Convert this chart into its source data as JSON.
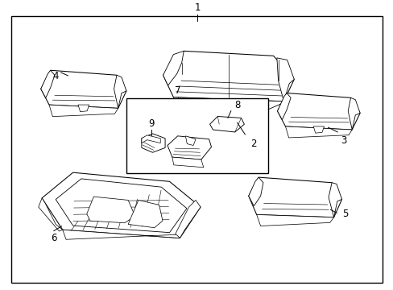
{
  "background_color": "#ffffff",
  "border_color": "#000000",
  "fig_width": 4.89,
  "fig_height": 3.6,
  "dpi": 100,
  "font_size": 8.5,
  "lw": 0.75
}
